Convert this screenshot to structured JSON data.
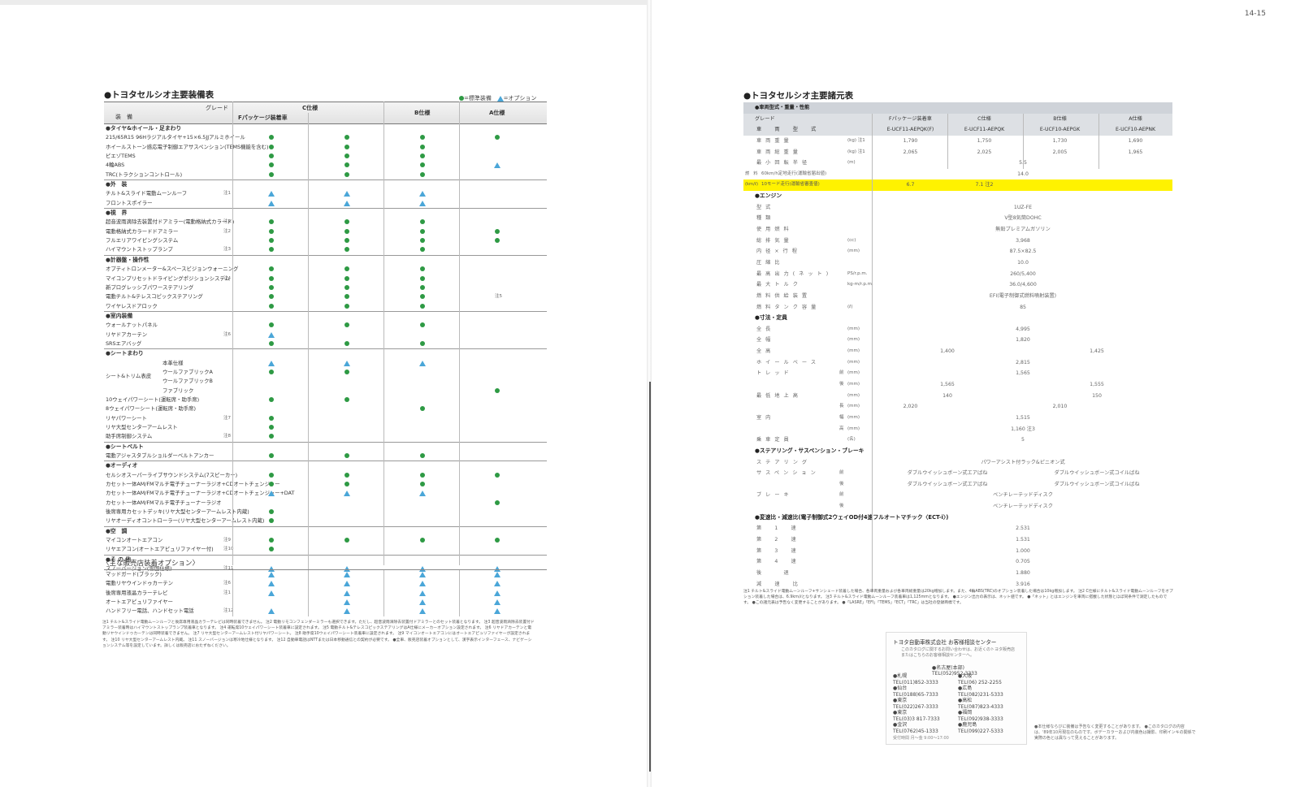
{
  "page_number": "14-15",
  "left": {
    "title": "●トヨタセルシオ主要装備表",
    "legend": {
      "standard": "=標準装備",
      "option": "=オプション"
    },
    "header": {
      "grade": "グレード",
      "equipment": "装　備",
      "c_spec": "C仕様",
      "f_package": "Fパッケージ装着車",
      "b_spec": "B仕様",
      "a_spec": "A仕様"
    },
    "rows": [
      {
        "type": "sec",
        "label": "●タイヤ&ホイール・足まわり"
      },
      {
        "label": "215/65R15 96Hラジアルタイヤ+15×6.5JJアルミホイール",
        "m": [
          "d",
          "d",
          "d",
          "d"
        ]
      },
      {
        "label": "ホイールストーン感応電子制御エアサスペンション(TEMS機能を含む)",
        "m": [
          "d",
          "d",
          "d",
          ""
        ]
      },
      {
        "label": "ピエゾTEMS",
        "m": [
          "d",
          "d",
          "d",
          ""
        ]
      },
      {
        "label": "4輪ABS",
        "m": [
          "d",
          "d",
          "d",
          "t"
        ]
      },
      {
        "label": "TRC(トラクションコントロール)",
        "m": [
          "d",
          "d",
          "d",
          ""
        ]
      },
      {
        "type": "sec",
        "label": "●外　装"
      },
      {
        "label": "チルト&スライド電動ムーンルーフ",
        "note": "注1",
        "m": [
          "t",
          "t",
          "t",
          ""
        ]
      },
      {
        "label": "フロントスポイラー",
        "m": [
          "t",
          "t",
          "t",
          ""
        ]
      },
      {
        "type": "sec",
        "label": "●視　界"
      },
      {
        "label": "超音波雨滴除去装置付ドアミラー(電動格納式カラード)",
        "note": "注2",
        "m": [
          "d",
          "d",
          "d",
          ""
        ]
      },
      {
        "label": "電動格納式カラードドアミラー",
        "note": "注2",
        "m": [
          "d",
          "d",
          "d",
          "d"
        ]
      },
      {
        "label": "フルエリアワイピングシステム",
        "m": [
          "d",
          "d",
          "d",
          "d"
        ]
      },
      {
        "label": "ハイマウントストップランプ",
        "note": "注3",
        "m": [
          "d",
          "d",
          "d",
          ""
        ]
      },
      {
        "type": "sec",
        "label": "●計器盤・操作性"
      },
      {
        "label": "オプティトロンメーター&スペースビジョンウォーニング",
        "m": [
          "d",
          "d",
          "d",
          ""
        ]
      },
      {
        "label": "マイコンプリセットドライビングポジションシステム",
        "note": "注4",
        "m": [
          "d",
          "d",
          "d",
          ""
        ]
      },
      {
        "label": "新プログレッシブパワーステアリング",
        "m": [
          "d",
          "d",
          "d",
          ""
        ]
      },
      {
        "label": "電動チルト&テレスコピックステアリング",
        "m": [
          "d",
          "d",
          "d",
          "注5"
        ]
      },
      {
        "label": "ワイヤレスドアロック",
        "m": [
          "d",
          "d",
          "d",
          ""
        ]
      },
      {
        "type": "sec",
        "label": "●室内装備"
      },
      {
        "label": "ウォールナットパネル",
        "m": [
          "d",
          "d",
          "d",
          ""
        ]
      },
      {
        "label": "リヤドアカーテン",
        "note": "注6",
        "m": [
          "t",
          "",
          "",
          ""
        ]
      },
      {
        "label": "SRSエアバッグ",
        "m": [
          "d",
          "d",
          "d",
          ""
        ]
      },
      {
        "type": "sec",
        "label": "●シートまわり"
      },
      {
        "sub": "本革仕様",
        "m": [
          "t",
          "t",
          "t",
          ""
        ]
      },
      {
        "sub": "ウールファブリックA",
        "m": [
          "d",
          "d",
          "",
          ""
        ]
      },
      {
        "sub": "ウールファブリックB",
        "m": [
          "",
          "",
          "",
          ""
        ]
      },
      {
        "sub": "ファブリック",
        "m": [
          "",
          "",
          "",
          "d"
        ]
      },
      {
        "label": "10ウェイパワーシート(運転席・助手席)",
        "m": [
          "d",
          "d",
          "",
          ""
        ]
      },
      {
        "label": "8ウェイパワーシート(運転席・助手席)",
        "m": [
          "",
          "",
          "d",
          ""
        ]
      },
      {
        "label": "リヤパワーシート",
        "note": "注7",
        "m": [
          "d",
          "",
          "",
          ""
        ]
      },
      {
        "label": "リヤ大型センターアームレスト",
        "m": [
          "d",
          "",
          "",
          ""
        ]
      },
      {
        "label": "助手席制御システム",
        "note": "注8",
        "m": [
          "d",
          "",
          "",
          ""
        ]
      },
      {
        "type": "sec",
        "label": "●シートベルト"
      },
      {
        "label": "電動アジャスタブルショルダーベルトアンカー",
        "m": [
          "d",
          "d",
          "d",
          ""
        ]
      },
      {
        "type": "sec",
        "label": "●オーディオ"
      },
      {
        "label": "セルシオスーパーライブサウンドシステム(7スピーカー)",
        "m": [
          "d",
          "d",
          "d",
          "d"
        ]
      },
      {
        "label": "カセット一体AM/FMマルチ電子チューナーラジオ+CDオートチェンジャー",
        "m": [
          "d",
          "d",
          "d",
          ""
        ]
      },
      {
        "label": "カセット一体AM/FMマルチ電子チューナーラジオ+CDオートチェンジャー+DAT",
        "m": [
          "t",
          "t",
          "t",
          ""
        ]
      },
      {
        "label": "カセット一体AM/FMマルチ電子チューナーラジオ",
        "m": [
          "",
          "",
          "",
          "d"
        ]
      },
      {
        "label": "後席専用カセットデッキ(リヤ大型センターアームレスト内蔵)",
        "m": [
          "d",
          "",
          "",
          ""
        ]
      },
      {
        "label": "リヤオーディオコントローラー(リヤ大型センターアームレスト内蔵)",
        "m": [
          "d",
          "",
          "",
          ""
        ]
      },
      {
        "type": "sec",
        "label": "●空　調"
      },
      {
        "label": "マイコンオートエアコン",
        "note": "注9",
        "m": [
          "d",
          "d",
          "d",
          "d"
        ]
      },
      {
        "label": "リヤエアコン(オートエアピュリファイヤー付)",
        "note": "注10",
        "m": [
          "d",
          "",
          "",
          ""
        ]
      },
      {
        "type": "sec",
        "label": "●そ の 他"
      },
      {
        "label": "スノーバージョン(雪国仕様)",
        "note": "注11",
        "m": [
          "t",
          "t",
          "t",
          "t"
        ]
      }
    ],
    "dealer_title": "〈主な販売店装着オプション〉",
    "dealer_rows": [
      {
        "label": "マッドガード(ブラック)",
        "m": [
          "t",
          "t",
          "t",
          "t"
        ]
      },
      {
        "label": "電動リヤウインドゥカーテン",
        "note": "注6",
        "m": [
          "t",
          "t",
          "t",
          "t"
        ]
      },
      {
        "label": "後席専用液晶カラーテレビ",
        "note": "注1",
        "m": [
          "t",
          "t",
          "t",
          "t"
        ]
      },
      {
        "label": "オートエアピュリファイヤー",
        "m": [
          "",
          "t",
          "t",
          "t"
        ]
      },
      {
        "label": "ハンドフリー電話、ハンドセット電話",
        "note": "注12",
        "m": [
          "t",
          "t",
          "t",
          "t"
        ]
      }
    ],
    "notes": "注1 チルト&スライド電動ムーンルーフと後席専用液晶カラーテレビは同時装着できません。 注2 電動リモコンフェンダーミラーも選択できます。ただし、超音波雨滴除去装置付ドアミラーとのセット装着となります。 注3 超音波雨滴除去装置付ドアミラー装着時はハイマウントストップランプ装着車となります。 注4 運転席10ウェイパワーシート装着車に設定されます。 注5 電動チルト&テレスコピックステアリングはA仕様にメーカーオプション設定されます。 注6 リヤドアカーテンと電動リヤウインドゥカーテンは同時装着できません。 注7 リヤ大型センターアームレスト付リヤパワーシート。 注8 助手席10ウェイパワーシート装着車に設定されます。 注9 マイコンオートエアコンにはオートエアピュリファイヤーが設定されます。 注10 リヤ大型センターアームレスト内蔵。 注11 スノーバージョンは寒冷地仕様となります。 注12 自動車電話はNTTまたは日本移動通信との契約が必要です。 ●全車、販売店装着オプションとして、漢字表示インターフェース、ナビゲーションシステム等を設定しています。詳しくは販売店におたずねください。"
  },
  "right": {
    "title": "●トヨタセルシオ主要諸元表",
    "sec_body": "●車両型式・重量・性能",
    "grade_label": "グレード",
    "col_f": "Fパッケージ装着車",
    "col_c": "C仕様",
    "col_b": "B仕様",
    "col_a": "A仕様",
    "model_label": "車　両　型　式",
    "models": [
      "E-UCF11-AEPQK(F)",
      "E-UCF11-AEPQK",
      "E-UCF10-AEPGK",
      "E-UCF10-AEPNK"
    ],
    "body_rows": [
      {
        "label": "車両重量",
        "unit": "(kg) 注1",
        "v": [
          "1,790",
          "1,750",
          "1,730",
          "1,690"
        ]
      },
      {
        "label": "車両総重量",
        "unit": "(kg) 注1",
        "v": [
          "2,065",
          "2,025",
          "2,005",
          "1,965"
        ]
      },
      {
        "label": "最小回転半径",
        "unit": "(m)",
        "all": "5.5"
      }
    ],
    "fuel_group": "燃　料\n消費率\n(km/ℓ)",
    "fuel_60": {
      "label": "60km/h定地走行(運輸省届出値)",
      "all": "14.0"
    },
    "fuel_10": {
      "label": "10モード走行(運輸省審査値)",
      "f": "6.7",
      "cab": "7.1 注2"
    },
    "sec_engine": "●エンジン",
    "engine_rows": [
      {
        "label": "型式",
        "all": "1UZ-FE"
      },
      {
        "label": "種類",
        "all": "V型8気筒DOHC"
      },
      {
        "label": "使用燃料",
        "all": "無鉛プレミアムガソリン"
      },
      {
        "label": "総排気量",
        "unit": "(cc)",
        "all": "3,968"
      },
      {
        "label": "内径×行程",
        "unit": "(mm)",
        "all": "87.5×82.5"
      },
      {
        "label": "圧縮比",
        "all": "10.0"
      },
      {
        "label": "最高出力(ネット)",
        "unit": "PS/r.p.m.",
        "all": "260/5,400"
      },
      {
        "label": "最大トルク",
        "unit": "kg-m/r.p.m.",
        "all": "36.0/4,600"
      },
      {
        "label": "燃料供給装置",
        "all": "EFI(電子制御式燃料噴射装置)"
      },
      {
        "label": "燃料タンク容量",
        "unit": "(ℓ)",
        "all": "85"
      }
    ],
    "sec_dim": "●寸法・定員",
    "dim_rows": [
      {
        "label": "全長",
        "unit": "(mm)",
        "all": "4,995"
      },
      {
        "label": "全幅",
        "unit": "(mm)",
        "all": "1,820"
      },
      {
        "label": "全高",
        "unit": "(mm)",
        "left": "1,400",
        "right": "1,425"
      },
      {
        "label": "ホイールベース",
        "unit": "(mm)",
        "all": "2,815"
      },
      {
        "label": "トレッド",
        "sub": "前",
        "unit": "(mm)",
        "all": "1,565"
      },
      {
        "label": "",
        "sub": "後",
        "unit": "(mm)",
        "left": "1,565",
        "right": "1,555"
      },
      {
        "label": "最低地上高",
        "unit": "(mm)",
        "left": "140",
        "right": "150"
      },
      {
        "label": "",
        "sub": "長",
        "unit": "(mm)",
        "f": "2,020",
        "all": "2,010"
      },
      {
        "label": "室内",
        "sub": "幅",
        "unit": "(mm)",
        "all": "1,515"
      },
      {
        "label": "",
        "sub": "高",
        "unit": "(mm)",
        "all": "1,160 注3"
      },
      {
        "label": "乗車定員",
        "unit": "(名)",
        "all": "5"
      }
    ],
    "sec_steer": "●ステアリング・サスペンション・ブレーキ",
    "steer_rows": [
      {
        "label": "ステアリング",
        "all": "パワーアシスト付ラック&ピニオン式"
      },
      {
        "label": "サスペンション",
        "sub": "前",
        "left": "ダブルウイッシュボーン式エアばね",
        "right": "ダブルウイッシュボーン式コイルばね"
      },
      {
        "label": "",
        "sub": "後",
        "left": "ダブルウイッシュボーン式エアばね",
        "right": "ダブルウイッシュボーン式コイルばね"
      },
      {
        "label": "ブレーキ",
        "sub": "前",
        "all": "ベンチレーテッドディスク"
      },
      {
        "label": "",
        "sub": "後",
        "all": "ベンチレーテッドディスク"
      }
    ],
    "sec_gear": "●変速比・減速比(電子制御式2ウェイOD付4速フルオートマチック〈ECT-i〉)",
    "gear_rows": [
      {
        "label": "第　1　速",
        "all": "2.531"
      },
      {
        "label": "第　2　速",
        "all": "1.531"
      },
      {
        "label": "第　3　速",
        "all": "1.000"
      },
      {
        "label": "第　4　速",
        "all": "0.705"
      },
      {
        "label": "後　　退",
        "all": "1.880"
      },
      {
        "label": "減　速　比",
        "all": "3.916"
      }
    ],
    "notes": "注1 チルト&スライド電動ムーンルーフ+サンシェード装着した場合、各車両重量および各車両総重量は20kg増加します。また、4輪ABS(TRC)のオプション装着した場合は10kg増加します。 注2 C仕様にチルト&スライド電動ムーンルーフをオプション装着した場合は、6.9km/ℓとなります。 注3 チルト&スライド電動ムーンルーフ装着車は1,125mmとなります。 ●エンジン出力の表示は、ネット値です。 ●「ネット」とはエンジンを車両に搭載した状態とほぼ同条件で測定したものです。 ●この諸元表は予告なく変更することがあります。 ●「LASRE」「EFI」「TEMS」「ECT」「TRC」は当社の登録商標です。",
    "contact": {
      "title": "トヨタ自動車株式会社 お客様相談センター",
      "text": "このカタログに関するお問い合わせは、お近くのトヨタ販売店またはこちらのお客様相談センターへ。",
      "main_label": "●名古屋(本部)",
      "main_tel": "TEL(052)952-3333",
      "left": [
        "●札幌",
        "TEL(011)852-3333",
        "●仙台",
        "TEL(0188)65-7333",
        "●東京",
        "TEL(022)267-3333",
        "●東京",
        "TEL(03)3 817-7333",
        "●金沢",
        "TEL(0762)45-1333"
      ],
      "right": [
        "●大阪",
        "TEL(06) 252-2255",
        "●広島",
        "TEL(082)231-5333",
        "●高松",
        "TEL(087)823-4333",
        "●福岡",
        "TEL(092)938-3333",
        "●鹿児島",
        "TEL(099)227-5333"
      ],
      "footer": "受付時間 月〜金 9:00〜17:00"
    },
    "footnote": "●本仕様ならびに装備は予告なく変更することがあります。 ●このカタログの内容は、'89年10月現在のものです。ボデーカラーおよび内装色は撮影、印刷インキの関係で実際の色とは異なって見えることがあります。"
  }
}
